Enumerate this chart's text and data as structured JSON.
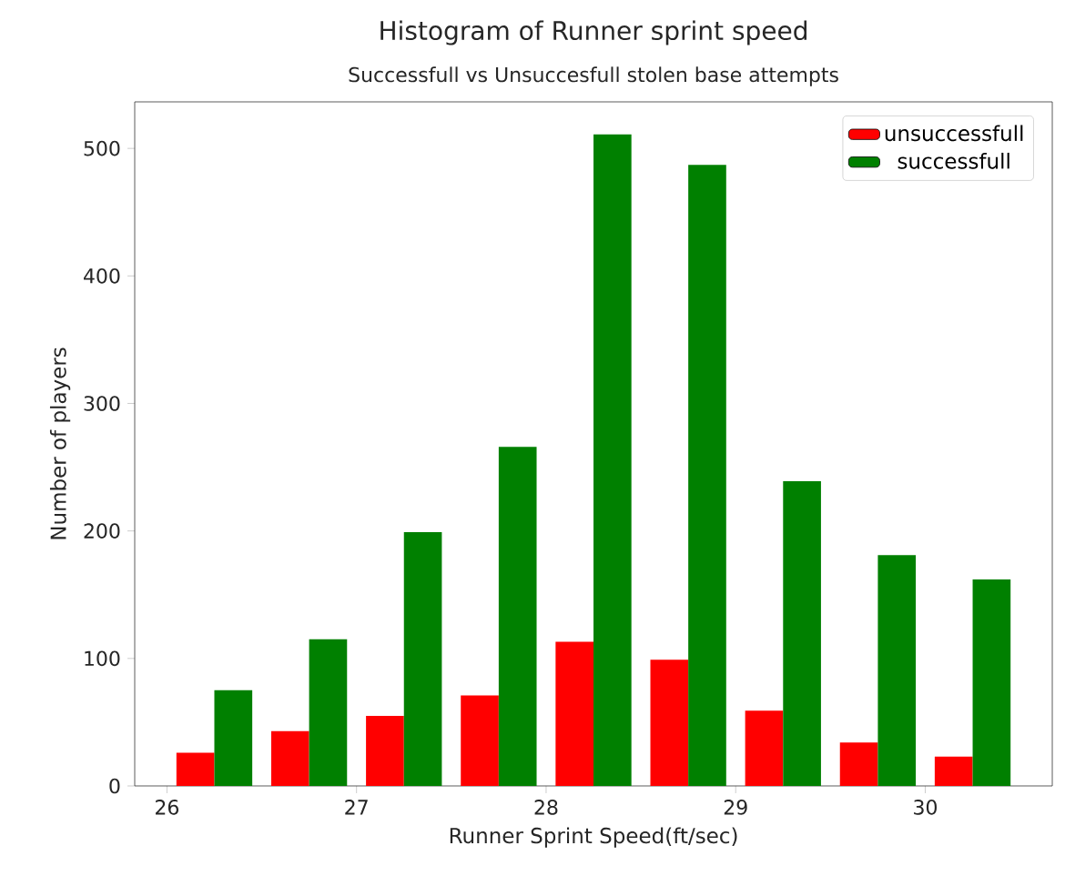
{
  "chart_data": {
    "type": "histogram",
    "title": "Histogram of Runner sprint speed",
    "subtitle": "Successfull vs Unsuccesfull stolen base attempts",
    "xlabel": "Runner Sprint Speed(ft/sec)",
    "ylabel": "Number of players",
    "bins": [
      26.0,
      26.5,
      27.0,
      27.5,
      28.0,
      28.5,
      29.0,
      29.5,
      30.0,
      30.5
    ],
    "series": [
      {
        "name": "unsuccessfull",
        "color": "#ff0000",
        "values": [
          26,
          43,
          55,
          71,
          113,
          99,
          59,
          34,
          23
        ]
      },
      {
        "name": "successfull",
        "color": "#008000",
        "values": [
          75,
          115,
          199,
          266,
          511,
          487,
          239,
          181,
          162
        ]
      }
    ],
    "xlim": [
      25.83,
      30.67
    ],
    "ylim": [
      0,
      536.5
    ],
    "xticks": [
      26,
      27,
      28,
      29,
      30
    ],
    "yticks": [
      0,
      100,
      200,
      300,
      400,
      500
    ],
    "legend": "top right"
  }
}
